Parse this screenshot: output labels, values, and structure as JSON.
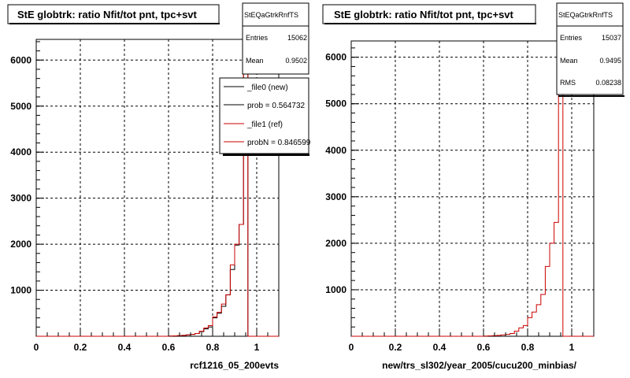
{
  "footer_text": "",
  "colors": {
    "hist_new": "#000000",
    "hist_ref": "#cc0000",
    "frame": "#000000",
    "grid": "#000000"
  },
  "chart_data": [
    {
      "type": "histogram",
      "title": "StE globtrk: ratio Nfit/tot pnt, tpc+svt",
      "xlabel": "rcf1216_05_200evts",
      "ylabel": "",
      "xlim": [
        0,
        1.1
      ],
      "ylim": [
        0,
        6450
      ],
      "grid": true,
      "x_ticks": [
        "0",
        "0.2",
        "0.4",
        "0.6",
        "0.8",
        "1"
      ],
      "y_ticks": [
        "1000",
        "2000",
        "3000",
        "4000",
        "5000",
        "6000"
      ],
      "stats_box": {
        "name": "StEQaGtrkRnfTS",
        "rows": [
          {
            "label": "Entries",
            "value": "15062"
          },
          {
            "label": "Mean",
            "value": "0.9502"
          }
        ]
      },
      "legend": {
        "placement": "top-right",
        "entries": [
          {
            "label": "_file0 (new)",
            "color": "#000000"
          },
          {
            "label": "prob = 0.564732",
            "color": "#000000"
          },
          {
            "label": "_file1 (ref)",
            "color": "#cc0000"
          },
          {
            "label": "probN = 0.846599",
            "color": "#cc0000"
          }
        ]
      },
      "bin_width": 0.02,
      "series": [
        {
          "name": "_file0 (new)",
          "x_start": 0.6,
          "values": [
            5,
            8,
            12,
            20,
            30,
            40,
            60,
            100,
            160,
            200,
            400,
            500,
            650,
            900,
            1450,
            1980,
            2430,
            6150
          ]
        },
        {
          "name": "_file1 (ref)",
          "x_start": 0.6,
          "values": [
            5,
            8,
            12,
            20,
            30,
            40,
            60,
            110,
            180,
            230,
            420,
            520,
            700,
            900,
            1550,
            2000,
            2430,
            6150
          ]
        }
      ]
    },
    {
      "type": "histogram",
      "title": "StE globtrk: ratio Nfit/tot pnt, tpc+svt",
      "xlabel": "new/trs_sl302/year_2005/cucu200_minbias/",
      "ylabel": "",
      "xlim": [
        0,
        1.1
      ],
      "ylim": [
        0,
        6350
      ],
      "grid": true,
      "x_ticks": [
        "0",
        "0.2",
        "0.4",
        "0.6",
        "0.8",
        "1"
      ],
      "y_ticks": [
        "1000",
        "2000",
        "3000",
        "4000",
        "5000",
        "6000"
      ],
      "stats_box": {
        "name": "StEQaGtrkRnfTS",
        "rows": [
          {
            "label": "Entries",
            "value": "15037"
          },
          {
            "label": "Mean",
            "value": "0.9495"
          },
          {
            "label": "RMS",
            "value": "0.08238"
          }
        ]
      },
      "bin_width": 0.02,
      "series": [
        {
          "name": "",
          "x_start": 0.6,
          "values": [
            5,
            8,
            12,
            20,
            30,
            40,
            60,
            110,
            180,
            230,
            400,
            520,
            680,
            900,
            1500,
            2000,
            2450,
            6200
          ]
        }
      ]
    }
  ]
}
